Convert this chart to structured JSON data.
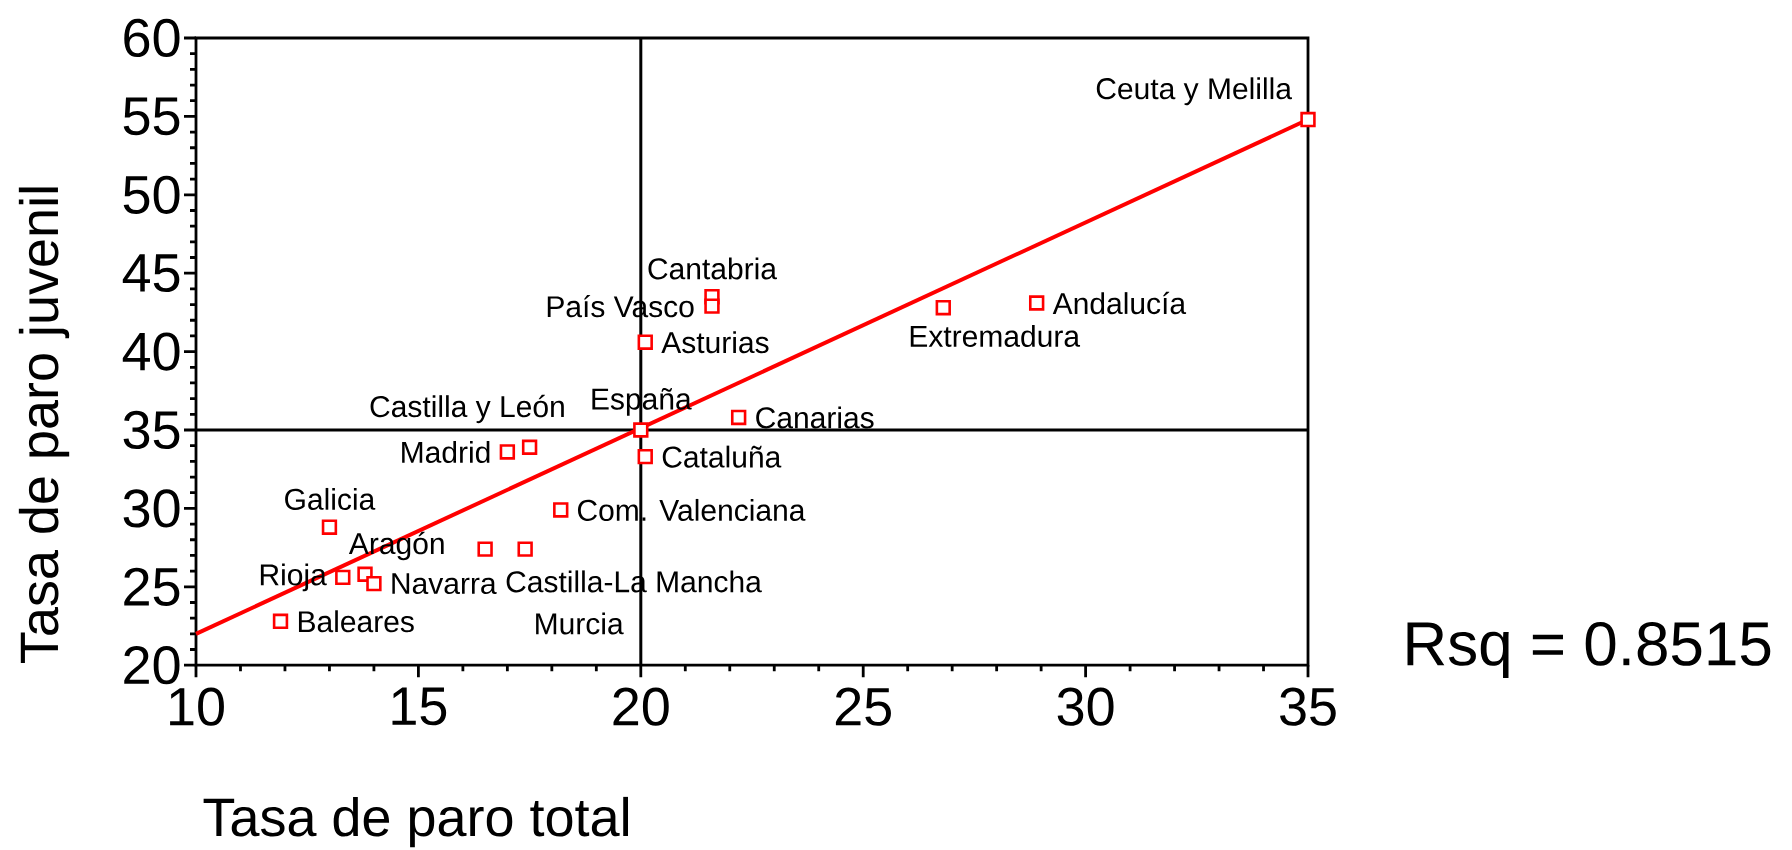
{
  "chart_data": {
    "type": "scatter",
    "xlabel": "Tasa de paro total",
    "ylabel": "Tasa de paro juvenil",
    "xlim": [
      10,
      35
    ],
    "ylim": [
      20,
      60
    ],
    "xticks": [
      10,
      15,
      20,
      25,
      30,
      35
    ],
    "yticks": [
      20,
      25,
      30,
      35,
      40,
      45,
      50,
      55,
      60
    ],
    "series": [
      {
        "color": "#ff0000",
        "marker": "square",
        "x": [
          11.9,
          13.0,
          13.3,
          13.8,
          14.0,
          16.5,
          17.0,
          17.4,
          17.5,
          18.2,
          20.0,
          20.1,
          20.1,
          21.6,
          21.6,
          22.2,
          26.8,
          28.9,
          35.0
        ],
        "values": [
          22.8,
          28.8,
          25.6,
          25.8,
          25.2,
          27.4,
          33.6,
          27.4,
          33.9,
          29.9,
          35.0,
          40.6,
          33.3,
          43.5,
          42.9,
          35.8,
          42.8,
          43.1,
          54.8
        ]
      },
      {
        "type": "line",
        "color": "#ff0000",
        "line_style": "solid",
        "x": [
          10,
          35
        ],
        "values": [
          22.0,
          54.8
        ]
      }
    ],
    "ref_lines": [
      {
        "axis": "x",
        "value": 20,
        "color": "#000000"
      },
      {
        "axis": "y",
        "value": 35,
        "color": "#000000"
      }
    ],
    "annotations": [
      {
        "text": "Baleares",
        "x": 11.9,
        "y": 22.8
      },
      {
        "text": "Galicia",
        "x": 13.0,
        "y": 28.8
      },
      {
        "text": "Rioja",
        "x": 13.3,
        "y": 25.6
      },
      {
        "text": "Aragón",
        "x": 13.8,
        "y": 25.8
      },
      {
        "text": "Navarra",
        "x": 14.0,
        "y": 25.2
      },
      {
        "text": "Castilla-La Mancha",
        "x": 16.5,
        "y": 27.4
      },
      {
        "text": "Madrid",
        "x": 17.0,
        "y": 33.6
      },
      {
        "text": "Murcia",
        "x": 17.4,
        "y": 27.4
      },
      {
        "text": "Castilla y León",
        "x": 17.5,
        "y": 33.9
      },
      {
        "text": "Com. Valenciana",
        "x": 18.2,
        "y": 29.9
      },
      {
        "text": "España",
        "x": 20.0,
        "y": 35.0
      },
      {
        "text": "Asturias",
        "x": 20.1,
        "y": 40.6
      },
      {
        "text": "Cataluña",
        "x": 20.1,
        "y": 33.3
      },
      {
        "text": "Cantabria",
        "x": 21.6,
        "y": 43.5
      },
      {
        "text": "País Vasco",
        "x": 21.6,
        "y": 42.9
      },
      {
        "text": "Canarias",
        "x": 22.2,
        "y": 35.8
      },
      {
        "text": "Extremadura",
        "x": 26.8,
        "y": 42.8
      },
      {
        "text": "Andalucía",
        "x": 28.9,
        "y": 43.1
      },
      {
        "text": "Ceuta y Melilla",
        "x": 35.0,
        "y": 54.8
      },
      "Rsq = 0.8515"
    ]
  }
}
